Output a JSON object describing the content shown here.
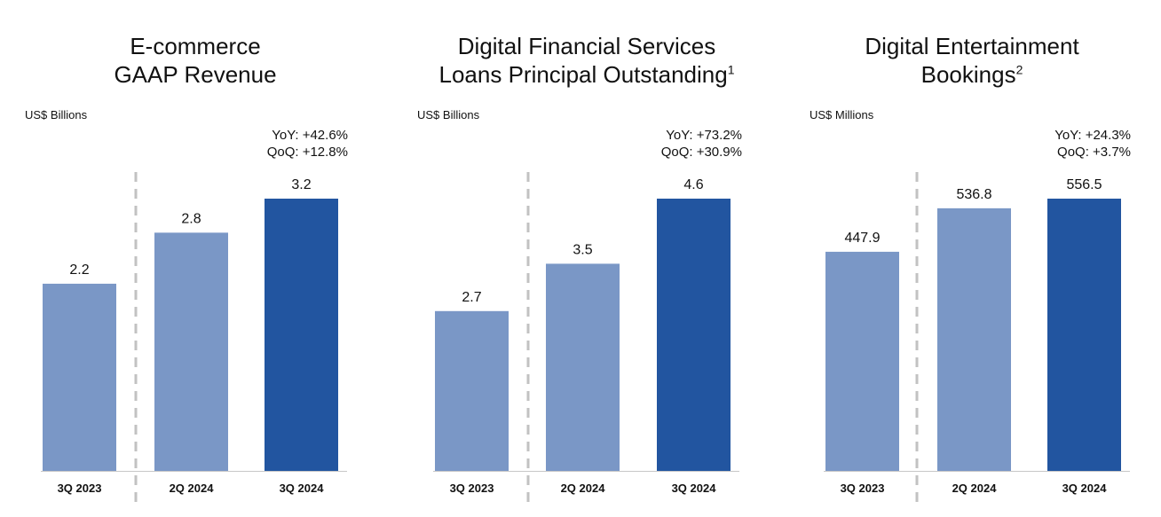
{
  "chart_data": [
    {
      "type": "bar",
      "title_lines": [
        "E-commerce",
        "GAAP Revenue"
      ],
      "title_sup": "",
      "unit": "US$ Billions",
      "yoy": "YoY: +42.6%",
      "qoq": "QoQ: +12.8%",
      "categories": [
        "3Q 2023",
        "2Q 2024",
        "3Q 2024"
      ],
      "values": [
        2.2,
        2.8,
        3.2
      ],
      "value_labels": [
        "2.2",
        "2.8",
        "3.2"
      ],
      "ylim": [
        0,
        3.2
      ],
      "colors": [
        "#7a97c6",
        "#7a97c6",
        "#2255a0"
      ]
    },
    {
      "type": "bar",
      "title_lines": [
        "Digital Financial Services",
        "Loans Principal Outstanding"
      ],
      "title_sup": "1",
      "unit": "US$ Billions",
      "yoy": "YoY: +73.2%",
      "qoq": "QoQ: +30.9%",
      "categories": [
        "3Q 2023",
        "2Q 2024",
        "3Q 2024"
      ],
      "values": [
        2.7,
        3.5,
        4.6
      ],
      "value_labels": [
        "2.7",
        "3.5",
        "4.6"
      ],
      "ylim": [
        0,
        4.6
      ],
      "colors": [
        "#7a97c6",
        "#7a97c6",
        "#2255a0"
      ]
    },
    {
      "type": "bar",
      "title_lines": [
        "Digital Entertainment",
        "Bookings"
      ],
      "title_sup": "2",
      "unit": "US$ Millions",
      "yoy": "YoY: +24.3%",
      "qoq": "QoQ: +3.7%",
      "categories": [
        "3Q 2023",
        "2Q 2024",
        "3Q 2024"
      ],
      "values": [
        447.9,
        536.8,
        556.5
      ],
      "value_labels": [
        "447.9",
        "536.8",
        "556.5"
      ],
      "ylim": [
        0,
        556.5
      ],
      "colors": [
        "#7a97c6",
        "#7a97c6",
        "#2255a0"
      ]
    }
  ]
}
